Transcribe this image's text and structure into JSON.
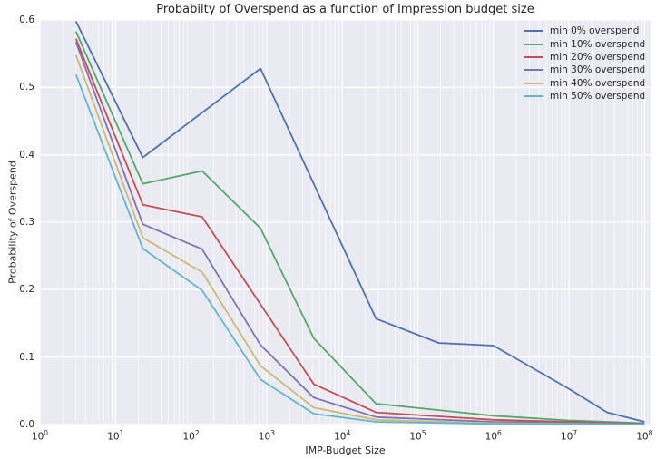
{
  "colors": {
    "figure_background": "#ffffff",
    "axes_background": "#eaeaf2",
    "grid": "#ffffff",
    "text": "#262626"
  },
  "chart_data": {
    "type": "line",
    "title": "Probabilty of Overspend as a function of Impression budget size",
    "xlabel": "IMP-Budget Size",
    "ylabel": "Probability of Overspend",
    "x_scale": "log",
    "xlim_log10": [
      0,
      8.08
    ],
    "ylim": [
      0,
      0.6
    ],
    "x_tick_exponents": [
      0,
      1,
      2,
      3,
      4,
      5,
      6,
      7,
      8
    ],
    "y_ticks": [
      "0.0",
      "0.1",
      "0.2",
      "0.3",
      "0.4",
      "0.5",
      "0.6"
    ],
    "grid": {
      "horizontal_major": true,
      "vertical_major": true,
      "vertical_log_minor": true
    },
    "legend_position": "upper right",
    "series": [
      {
        "name": "min 0% overspend",
        "color": "#4c72b0",
        "x": [
          3,
          23,
          830,
          28000,
          190000,
          1000000,
          10000000,
          32000000,
          100000000
        ],
        "y": [
          0.598,
          0.396,
          0.528,
          0.157,
          0.121,
          0.117,
          0.053,
          0.018,
          0.004
        ]
      },
      {
        "name": "min 10% overspend",
        "color": "#55a868",
        "x": [
          3,
          23,
          140,
          830,
          4200,
          28000,
          1000000,
          10000000,
          100000000
        ],
        "y": [
          0.583,
          0.357,
          0.376,
          0.291,
          0.128,
          0.031,
          0.013,
          0.006,
          0.002
        ]
      },
      {
        "name": "min 20% overspend",
        "color": "#c44e52",
        "x": [
          3,
          23,
          140,
          4200,
          28000,
          1000000,
          100000000
        ],
        "y": [
          0.572,
          0.326,
          0.308,
          0.06,
          0.018,
          0.007,
          0.001
        ]
      },
      {
        "name": "min 30% overspend",
        "color": "#8172b2",
        "x": [
          3,
          23,
          140,
          830,
          4200,
          28000,
          1000000,
          100000000
        ],
        "y": [
          0.567,
          0.297,
          0.26,
          0.118,
          0.04,
          0.011,
          0.004,
          0.001
        ]
      },
      {
        "name": "min 40% overspend",
        "color": "#ccb974",
        "x": [
          3,
          23,
          140,
          830,
          4200,
          28000,
          1000000,
          100000000
        ],
        "y": [
          0.548,
          0.277,
          0.226,
          0.087,
          0.025,
          0.007,
          0.002,
          0.0
        ]
      },
      {
        "name": "min 50% overspend",
        "color": "#64b5cd",
        "x": [
          3,
          23,
          140,
          830,
          4200,
          28000,
          1000000,
          100000000
        ],
        "y": [
          0.519,
          0.261,
          0.199,
          0.067,
          0.016,
          0.004,
          0.001,
          0.0
        ]
      }
    ]
  }
}
